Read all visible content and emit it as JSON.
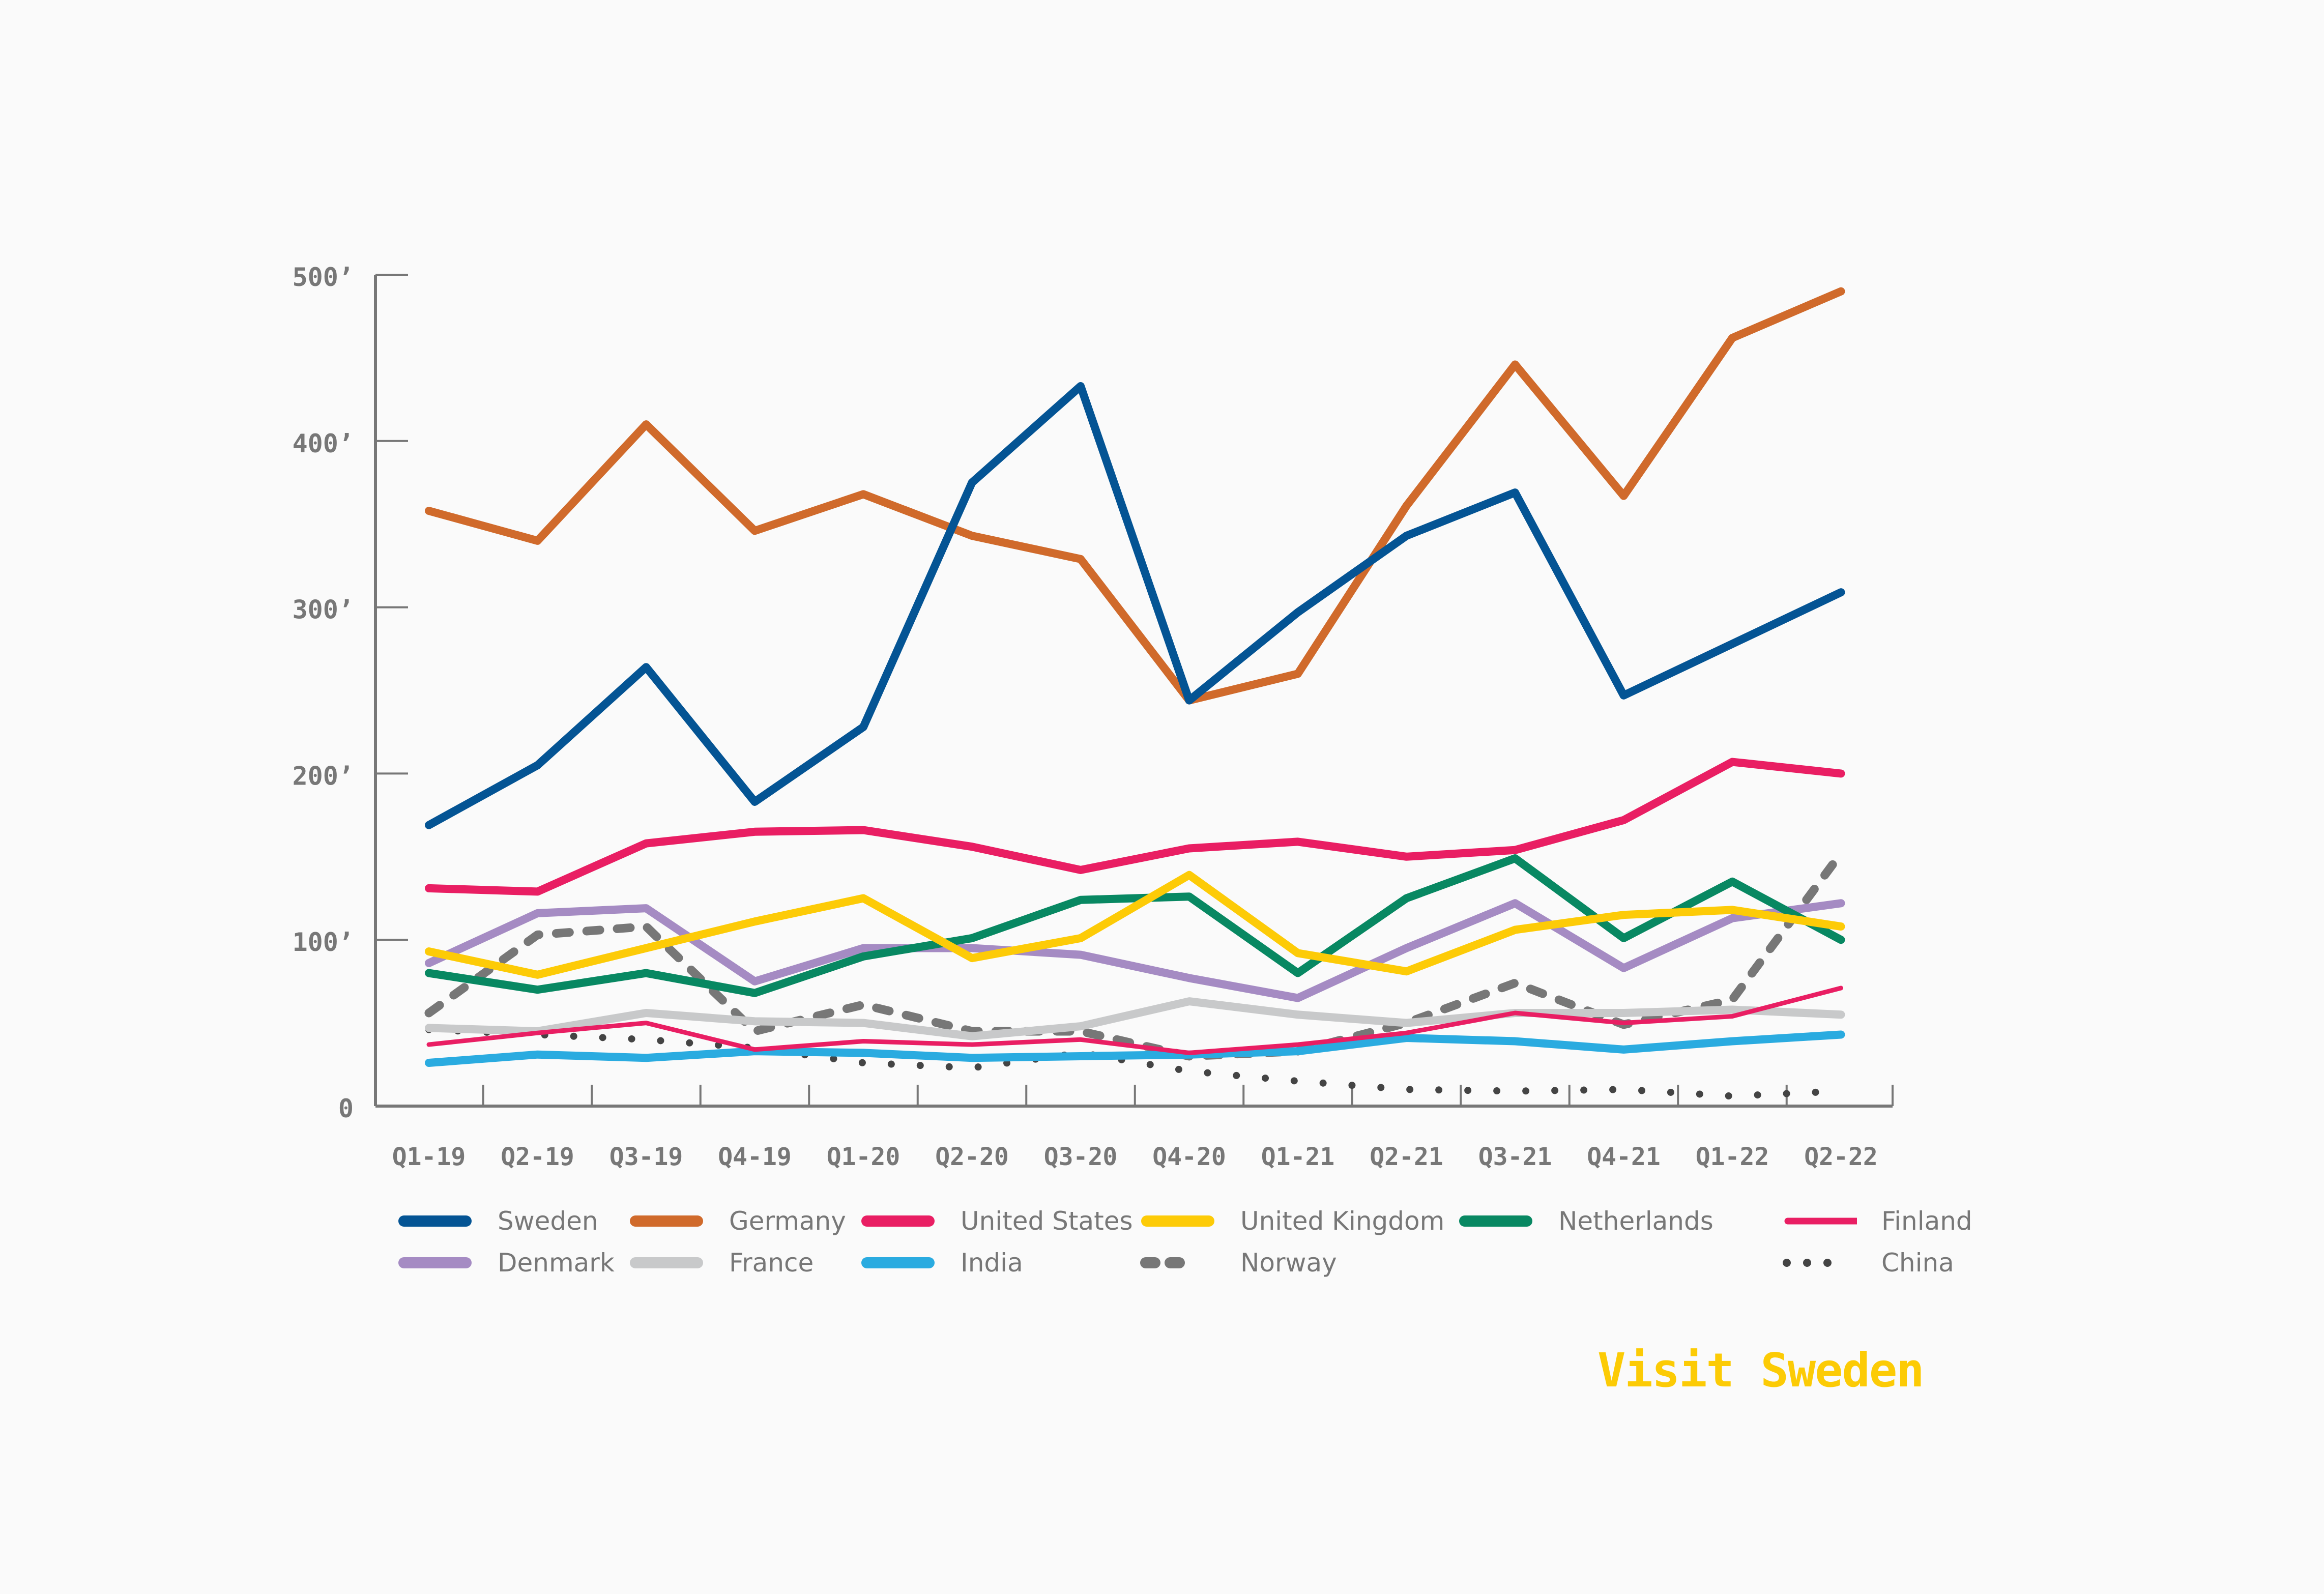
{
  "brand": {
    "label": "Visit Sweden",
    "color": "#FCCB05"
  },
  "chart_data": {
    "type": "line",
    "title": "",
    "xlabel": "",
    "ylabel": "",
    "ylim": [
      0,
      500
    ],
    "yticks": [
      0,
      100,
      200,
      300,
      400,
      500
    ],
    "ytick_labels": [
      "0",
      "100’",
      "200’",
      "300’",
      "400’",
      "500’"
    ],
    "grid": false,
    "legend_position": "bottom",
    "categories": [
      "Q1-19",
      "Q2-19",
      "Q3-19",
      "Q4-19",
      "Q1-20",
      "Q2-20",
      "Q3-20",
      "Q4-20",
      "Q1-21",
      "Q2-21",
      "Q3-21",
      "Q4-21",
      "Q1-22",
      "Q2-22"
    ],
    "series": [
      {
        "name": "Sweden",
        "color": "#045494",
        "style": "solid",
        "values": [
          169,
          205,
          264,
          183,
          228,
          375,
          433,
          244,
          297,
          343,
          369,
          247,
          278,
          309
        ]
      },
      {
        "name": "Germany",
        "color": "#D06A2B",
        "style": "solid",
        "values": [
          358,
          340,
          410,
          346,
          368,
          343,
          329,
          244,
          260,
          361,
          446,
          367,
          462,
          490
        ]
      },
      {
        "name": "United States",
        "color": "#E91E63",
        "style": "solid",
        "values": [
          131,
          129,
          158,
          165,
          166,
          156,
          142,
          155,
          159,
          150,
          154,
          172,
          207,
          200
        ]
      },
      {
        "name": "United Kingdom",
        "color": "#FDCB07",
        "style": "solid",
        "values": [
          93,
          79,
          95,
          111,
          125,
          89,
          101,
          139,
          92,
          81,
          106,
          115,
          118,
          108
        ]
      },
      {
        "name": "Netherlands",
        "color": "#088862",
        "style": "solid",
        "values": [
          80,
          70,
          80,
          68,
          90,
          101,
          124,
          126,
          80,
          125,
          149,
          101,
          135,
          100
        ]
      },
      {
        "name": "Finland",
        "color": "#E91E63",
        "style": "thin",
        "values": [
          37,
          44,
          50,
          34,
          39,
          37,
          40,
          32,
          37,
          44,
          56,
          50,
          54,
          71
        ]
      },
      {
        "name": "Denmark",
        "color": "#A58BC3",
        "style": "solid",
        "values": [
          86,
          116,
          119,
          75,
          95,
          95,
          91,
          77,
          65,
          95,
          122,
          83,
          113,
          122
        ]
      },
      {
        "name": "France",
        "color": "#C8C9CA",
        "style": "solid",
        "values": [
          47,
          45,
          56,
          51,
          50,
          42,
          48,
          63,
          55,
          50,
          56,
          56,
          58,
          55
        ]
      },
      {
        "name": "India",
        "color": "#2AABE0",
        "style": "solid",
        "values": [
          26,
          31,
          29,
          33,
          32,
          29,
          30,
          31,
          33,
          41,
          39,
          34,
          39,
          43
        ]
      },
      {
        "name": "Norway",
        "color": "#777777",
        "style": "dashed",
        "values": [
          56,
          103,
          108,
          45,
          61,
          45,
          45,
          30,
          33,
          50,
          74,
          49,
          64,
          152
        ]
      },
      {
        "name": "China",
        "color": "#444444",
        "style": "dotted",
        "values": [
          46,
          43,
          40,
          35,
          26,
          23,
          32,
          21,
          15,
          10,
          9,
          10,
          6,
          9
        ]
      }
    ]
  },
  "legend": [
    {
      "name": "Sweden",
      "color": "#045494",
      "style": "solid"
    },
    {
      "name": "Germany",
      "color": "#D06A2B",
      "style": "solid"
    },
    {
      "name": "United States",
      "color": "#E91E63",
      "style": "solid"
    },
    {
      "name": "United Kingdom",
      "color": "#FDCB07",
      "style": "solid"
    },
    {
      "name": "Netherlands",
      "color": "#088862",
      "style": "solid"
    },
    {
      "name": "Finland",
      "color": "#E91E63",
      "style": "thin"
    },
    {
      "name": "Denmark",
      "color": "#A58BC3",
      "style": "solid"
    },
    {
      "name": "France",
      "color": "#C8C9CA",
      "style": "solid"
    },
    {
      "name": "India",
      "color": "#2AABE0",
      "style": "solid"
    },
    {
      "name": "Norway",
      "color": "#777777",
      "style": "dashed"
    },
    {
      "name": "China",
      "color": "#444444",
      "style": "dotted"
    }
  ]
}
